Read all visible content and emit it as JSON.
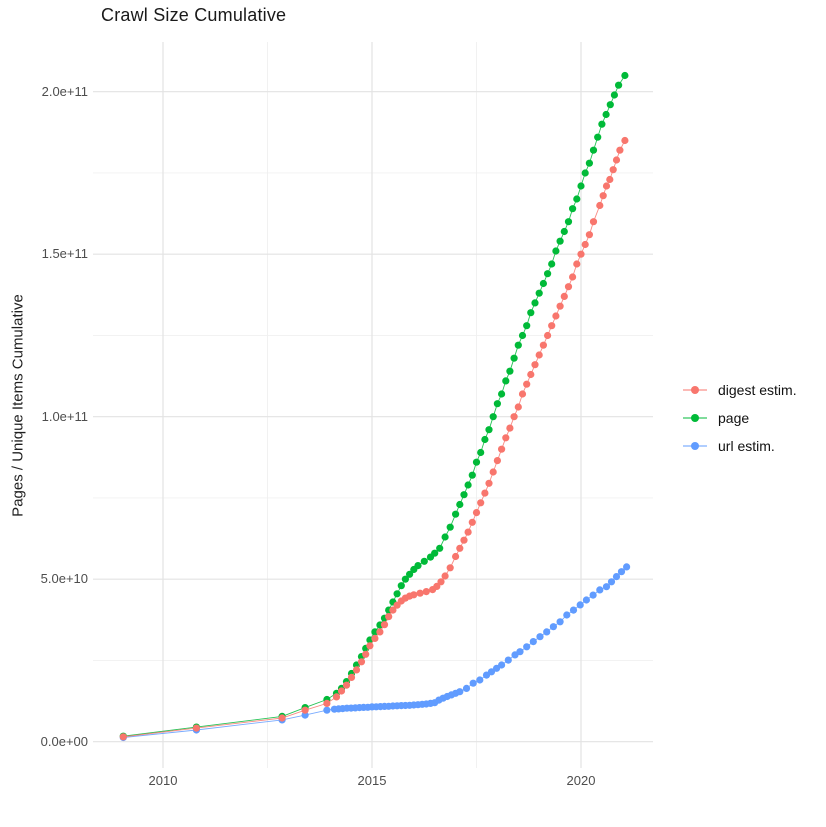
{
  "title": "Crawl Size Cumulative",
  "axes": {
    "y_title": "Pages / Unique Items Cumulative",
    "y_ticks": [
      {
        "label": "0.0e+00",
        "value": 0
      },
      {
        "label": "5.0e+10",
        "value": 50000000000.0
      },
      {
        "label": "1.0e+11",
        "value": 100000000000.0
      },
      {
        "label": "1.5e+11",
        "value": 150000000000.0
      },
      {
        "label": "2.0e+11",
        "value": 200000000000.0
      }
    ],
    "y_minor": [
      25000000000.0,
      75000000000.0,
      125000000000.0,
      175000000000.0
    ],
    "x_ticks": [
      {
        "label": "2010",
        "value": 2010
      },
      {
        "label": "2015",
        "value": 2015
      },
      {
        "label": "2020",
        "value": 2020
      }
    ],
    "x_minor": [
      2012.5,
      2017.5
    ]
  },
  "legend": {
    "entries": [
      {
        "label": "digest estim.",
        "color": "#F8766D"
      },
      {
        "label": "page",
        "color": "#00BA38"
      },
      {
        "label": "url estim.",
        "color": "#619CFF"
      }
    ]
  },
  "colors": {
    "digest": "#F8766D",
    "page": "#00BA38",
    "url": "#619CFF",
    "grid_major": "#e3e3e3",
    "grid_minor": "#f0f0f0",
    "tick_text": "#4d4d4d"
  },
  "chart_data": {
    "type": "scatter",
    "title": "Crawl Size Cumulative",
    "xlabel": "",
    "ylabel": "Pages / Unique Items Cumulative",
    "xlim": [
      2008.4,
      2021.7
    ],
    "ylim": [
      -10000000000.0,
      216000000000.0
    ],
    "grid": true,
    "legend_position": "right",
    "x_breaks": [
      2010,
      2015,
      2020
    ],
    "y_breaks": [
      0,
      50000000000.0,
      100000000000.0,
      150000000000.0,
      200000000000.0
    ],
    "series": [
      {
        "name": "page",
        "color": "#00BA38",
        "points": [
          [
            2009.05,
            1700000000.0
          ],
          [
            2010.8,
            4500000000.0
          ],
          [
            2012.85,
            7800000000.0
          ],
          [
            2013.4,
            10500000000.0
          ],
          [
            2013.92,
            13000000000.0
          ],
          [
            2014.15,
            14900000000.0
          ],
          [
            2014.27,
            16400000000.0
          ],
          [
            2014.39,
            18500000000.0
          ],
          [
            2014.51,
            21000000000.0
          ],
          [
            2014.63,
            23600000000.0
          ],
          [
            2014.75,
            26200000000.0
          ],
          [
            2014.85,
            28700000000.0
          ],
          [
            2014.95,
            31300000000.0
          ],
          [
            2015.07,
            33800000000.0
          ],
          [
            2015.19,
            35900000000.0
          ],
          [
            2015.3,
            38000000000.0
          ],
          [
            2015.4,
            40500000000.0
          ],
          [
            2015.5,
            43000000000.0
          ],
          [
            2015.6,
            45500000000.0
          ],
          [
            2015.7,
            48000000000.0
          ],
          [
            2015.8,
            50000000000.0
          ],
          [
            2015.9,
            51500000000.0
          ],
          [
            2016.0,
            53000000000.0
          ],
          [
            2016.1,
            54200000000.0
          ],
          [
            2016.25,
            55500000000.0
          ],
          [
            2016.4,
            56800000000.0
          ],
          [
            2016.5,
            58000000000.0
          ],
          [
            2016.62,
            59500000000.0
          ],
          [
            2016.75,
            63000000000.0
          ],
          [
            2016.87,
            66000000000.0
          ],
          [
            2017.0,
            70000000000.0
          ],
          [
            2017.1,
            73000000000.0
          ],
          [
            2017.2,
            76000000000.0
          ],
          [
            2017.3,
            79000000000.0
          ],
          [
            2017.4,
            82000000000.0
          ],
          [
            2017.5,
            86000000000.0
          ],
          [
            2017.6,
            89000000000.0
          ],
          [
            2017.7,
            93000000000.0
          ],
          [
            2017.8,
            96000000000.0
          ],
          [
            2017.9,
            100000000000.0
          ],
          [
            2018.0,
            104000000000.0
          ],
          [
            2018.1,
            107000000000.0
          ],
          [
            2018.2,
            111000000000.0
          ],
          [
            2018.3,
            114000000000.0
          ],
          [
            2018.4,
            118000000000.0
          ],
          [
            2018.5,
            122000000000.0
          ],
          [
            2018.6,
            125000000000.0
          ],
          [
            2018.7,
            128000000000.0
          ],
          [
            2018.8,
            132000000000.0
          ],
          [
            2018.9,
            135000000000.0
          ],
          [
            2019.0,
            138000000000.0
          ],
          [
            2019.1,
            141000000000.0
          ],
          [
            2019.2,
            144000000000.0
          ],
          [
            2019.3,
            147000000000.0
          ],
          [
            2019.4,
            151000000000.0
          ],
          [
            2019.5,
            154000000000.0
          ],
          [
            2019.6,
            157000000000.0
          ],
          [
            2019.7,
            160000000000.0
          ],
          [
            2019.8,
            164000000000.0
          ],
          [
            2019.9,
            167000000000.0
          ],
          [
            2020.0,
            171000000000.0
          ],
          [
            2020.1,
            175000000000.0
          ],
          [
            2020.2,
            178000000000.0
          ],
          [
            2020.3,
            182000000000.0
          ],
          [
            2020.4,
            186000000000.0
          ],
          [
            2020.5,
            190000000000.0
          ],
          [
            2020.6,
            193000000000.0
          ],
          [
            2020.7,
            196000000000.0
          ],
          [
            2020.8,
            199000000000.0
          ],
          [
            2020.9,
            202000000000.0
          ],
          [
            2021.05,
            205000000000.0
          ]
        ]
      },
      {
        "name": "url estim.",
        "color": "#619CFF",
        "points": [
          [
            2009.05,
            1300000000.0
          ],
          [
            2010.8,
            3600000000.0
          ],
          [
            2012.85,
            6700000000.0
          ],
          [
            2013.4,
            8200000000.0
          ],
          [
            2013.92,
            9700000000.0
          ],
          [
            2014.1,
            10000000000.0
          ],
          [
            2014.2,
            10100000000.0
          ],
          [
            2014.3,
            10200000000.0
          ],
          [
            2014.4,
            10300000000.0
          ],
          [
            2014.5,
            10350000000.0
          ],
          [
            2014.6,
            10400000000.0
          ],
          [
            2014.7,
            10500000000.0
          ],
          [
            2014.8,
            10550000000.0
          ],
          [
            2014.9,
            10600000000.0
          ],
          [
            2015.0,
            10700000000.0
          ],
          [
            2015.1,
            10750000000.0
          ],
          [
            2015.2,
            10800000000.0
          ],
          [
            2015.3,
            10850000000.0
          ],
          [
            2015.4,
            10900000000.0
          ],
          [
            2015.5,
            11000000000.0
          ],
          [
            2015.6,
            11050000000.0
          ],
          [
            2015.7,
            11100000000.0
          ],
          [
            2015.8,
            11150000000.0
          ],
          [
            2015.9,
            11200000000.0
          ],
          [
            2016.0,
            11300000000.0
          ],
          [
            2016.1,
            11400000000.0
          ],
          [
            2016.2,
            11500000000.0
          ],
          [
            2016.3,
            11600000000.0
          ],
          [
            2016.4,
            11800000000.0
          ],
          [
            2016.5,
            12000000000.0
          ],
          [
            2016.6,
            12800000000.0
          ],
          [
            2016.7,
            13400000000.0
          ],
          [
            2016.8,
            13900000000.0
          ],
          [
            2016.9,
            14400000000.0
          ],
          [
            2017.0,
            14900000000.0
          ],
          [
            2017.1,
            15400000000.0
          ],
          [
            2017.26,
            16400000000.0
          ],
          [
            2017.42,
            18000000000.0
          ],
          [
            2017.58,
            19000000000.0
          ],
          [
            2017.74,
            20500000000.0
          ],
          [
            2017.86,
            21500000000.0
          ],
          [
            2017.98,
            22600000000.0
          ],
          [
            2018.1,
            23600000000.0
          ],
          [
            2018.26,
            25100000000.0
          ],
          [
            2018.42,
            26700000000.0
          ],
          [
            2018.54,
            27700000000.0
          ],
          [
            2018.7,
            29200000000.0
          ],
          [
            2018.86,
            30800000000.0
          ],
          [
            2019.02,
            32300000000.0
          ],
          [
            2019.18,
            33800000000.0
          ],
          [
            2019.34,
            35400000000.0
          ],
          [
            2019.5,
            36900000000.0
          ],
          [
            2019.66,
            39000000000.0
          ],
          [
            2019.82,
            40500000000.0
          ],
          [
            2019.98,
            42100000000.0
          ],
          [
            2020.13,
            43600000000.0
          ],
          [
            2020.29,
            45100000000.0
          ],
          [
            2020.45,
            46700000000.0
          ],
          [
            2020.61,
            47700000000.0
          ],
          [
            2020.73,
            49200000000.0
          ],
          [
            2020.85,
            50800000000.0
          ],
          [
            2020.97,
            52300000000.0
          ],
          [
            2021.09,
            53800000000.0
          ]
        ]
      },
      {
        "name": "digest estim.",
        "color": "#F8766D",
        "points": [
          [
            2009.05,
            1500000000.0
          ],
          [
            2010.8,
            4200000000.0
          ],
          [
            2012.85,
            7300000000.0
          ],
          [
            2013.4,
            9700000000.0
          ],
          [
            2013.92,
            11800000000.0
          ],
          [
            2014.15,
            13800000000.0
          ],
          [
            2014.27,
            15600000000.0
          ],
          [
            2014.39,
            17400000000.0
          ],
          [
            2014.51,
            19800000000.0
          ],
          [
            2014.63,
            22100000000.0
          ],
          [
            2014.75,
            24600000000.0
          ],
          [
            2014.85,
            26900000000.0
          ],
          [
            2014.95,
            29500000000.0
          ],
          [
            2015.07,
            31800000000.0
          ],
          [
            2015.19,
            33800000000.0
          ],
          [
            2015.3,
            36000000000.0
          ],
          [
            2015.4,
            38500000000.0
          ],
          [
            2015.5,
            40500000000.0
          ],
          [
            2015.6,
            42000000000.0
          ],
          [
            2015.7,
            43300000000.0
          ],
          [
            2015.8,
            44200000000.0
          ],
          [
            2015.9,
            44800000000.0
          ],
          [
            2016.0,
            45200000000.0
          ],
          [
            2016.15,
            45700000000.0
          ],
          [
            2016.3,
            46200000000.0
          ],
          [
            2016.45,
            46800000000.0
          ],
          [
            2016.55,
            47800000000.0
          ],
          [
            2016.65,
            49200000000.0
          ],
          [
            2016.75,
            51000000000.0
          ],
          [
            2016.87,
            53500000000.0
          ],
          [
            2017.0,
            57000000000.0
          ],
          [
            2017.1,
            59500000000.0
          ],
          [
            2017.2,
            62000000000.0
          ],
          [
            2017.3,
            64500000000.0
          ],
          [
            2017.4,
            67500000000.0
          ],
          [
            2017.5,
            70500000000.0
          ],
          [
            2017.6,
            73500000000.0
          ],
          [
            2017.7,
            76500000000.0
          ],
          [
            2017.8,
            79500000000.0
          ],
          [
            2017.9,
            83000000000.0
          ],
          [
            2018.0,
            86500000000.0
          ],
          [
            2018.1,
            90000000000.0
          ],
          [
            2018.2,
            93500000000.0
          ],
          [
            2018.3,
            96500000000.0
          ],
          [
            2018.4,
            100000000000.0
          ],
          [
            2018.5,
            103000000000.0
          ],
          [
            2018.6,
            107000000000.0
          ],
          [
            2018.7,
            110000000000.0
          ],
          [
            2018.8,
            113000000000.0
          ],
          [
            2018.9,
            116000000000.0
          ],
          [
            2019.0,
            119000000000.0
          ],
          [
            2019.1,
            122000000000.0
          ],
          [
            2019.2,
            125000000000.0
          ],
          [
            2019.3,
            128000000000.0
          ],
          [
            2019.4,
            131000000000.0
          ],
          [
            2019.5,
            134000000000.0
          ],
          [
            2019.6,
            137000000000.0
          ],
          [
            2019.7,
            140000000000.0
          ],
          [
            2019.8,
            143000000000.0
          ],
          [
            2019.9,
            147000000000.0
          ],
          [
            2020.0,
            150000000000.0
          ],
          [
            2020.1,
            153000000000.0
          ],
          [
            2020.2,
            156000000000.0
          ],
          [
            2020.3,
            160000000000.0
          ],
          [
            2020.45,
            165000000000.0
          ],
          [
            2020.53,
            168000000000.0
          ],
          [
            2020.61,
            171000000000.0
          ],
          [
            2020.69,
            173000000000.0
          ],
          [
            2020.77,
            176000000000.0
          ],
          [
            2020.85,
            179000000000.0
          ],
          [
            2020.93,
            182000000000.0
          ],
          [
            2021.05,
            185000000000.0
          ]
        ]
      }
    ]
  }
}
